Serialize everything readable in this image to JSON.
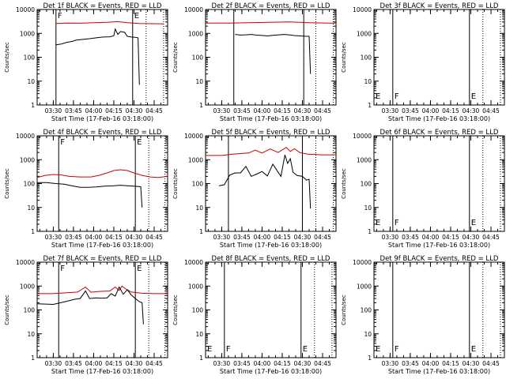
{
  "figure": {
    "ylabel": "Counts/sec",
    "xlabel": "Start Time (17-Feb-16 03:18:00)"
  },
  "x_ticks": [
    "03:30",
    "03:45",
    "04:00",
    "04:15",
    "04:30",
    "04:45"
  ],
  "chart_data": [
    {
      "id": "det1f",
      "title": "Det 1f BLACK = Events, RED = LLD",
      "type": "line",
      "yscale": "log",
      "yticks": [
        "1",
        "10",
        "100",
        "1000",
        "10000"
      ],
      "ylim": [
        1,
        10000
      ],
      "xlim": [
        "03:18",
        "04:55"
      ],
      "x_ticks": [
        "03:30",
        "03:45",
        "04:00",
        "04:15",
        "04:30",
        "04:45"
      ],
      "markers": {
        "solid": [
          "03:32",
          "04:29"
        ],
        "dotted": [
          "04:39",
          "04:52"
        ],
        "labels": [
          "F",
          "E"
        ]
      },
      "series": [
        {
          "color": "#cc0000",
          "points": [
            [
              "03:32",
              2600
            ],
            [
              "03:40",
              2700
            ],
            [
              "03:50",
              2650
            ],
            [
              "04:00",
              2800
            ],
            [
              "04:10",
              2900
            ],
            [
              "04:18",
              3100
            ],
            [
              "04:25",
              2800
            ],
            [
              "04:34",
              2600
            ],
            [
              "04:45",
              2550
            ],
            [
              "04:52",
              2500
            ]
          ]
        },
        {
          "color": "#000000",
          "points": [
            [
              "03:32",
              330
            ],
            [
              "03:36",
              360
            ],
            [
              "03:40",
              420
            ],
            [
              "03:44",
              460
            ],
            [
              "03:47",
              520
            ],
            [
              "03:52",
              560
            ],
            [
              "03:57",
              600
            ],
            [
              "04:02",
              650
            ],
            [
              "04:07",
              700
            ],
            [
              "04:12",
              720
            ],
            [
              "04:15",
              800
            ],
            [
              "04:16",
              1500
            ],
            [
              "04:18",
              900
            ],
            [
              "04:20",
              1200
            ],
            [
              "04:23",
              1100
            ],
            [
              "04:25",
              750
            ],
            [
              "04:28",
              700
            ],
            [
              "04:31",
              680
            ],
            [
              "04:33",
              650
            ],
            [
              "04:34",
              7
            ]
          ]
        }
      ]
    },
    {
      "id": "det2f",
      "title": "Det 2f BLACK = Events, RED = LLD",
      "type": "line",
      "yscale": "log",
      "yticks": [
        "1",
        "10",
        "100",
        "1000",
        "10000"
      ],
      "ylim": [
        1,
        10000
      ],
      "xlim": [
        "03:18",
        "04:55"
      ],
      "x_ticks": [
        "03:30",
        "03:45",
        "04:00",
        "04:15",
        "04:30",
        "04:45"
      ],
      "markers": {
        "solid": [
          "03:39",
          "04:31"
        ],
        "dotted": [
          "04:40",
          "04:53"
        ],
        "labels": []
      },
      "series": [
        {
          "color": "#cc0000",
          "points": [
            [
              "03:18",
              2700
            ],
            [
              "03:35",
              2700
            ],
            [
              "03:50",
              2800
            ],
            [
              "04:05",
              2900
            ],
            [
              "04:20",
              3000
            ],
            [
              "04:35",
              2800
            ],
            [
              "04:50",
              2700
            ],
            [
              "04:55",
              2700
            ]
          ]
        },
        {
          "color": "#000000",
          "points": [
            [
              "03:40",
              900
            ],
            [
              "03:44",
              850
            ],
            [
              "03:48",
              870
            ],
            [
              "03:52",
              900
            ],
            [
              "03:56",
              840
            ],
            [
              "04:00",
              820
            ],
            [
              "04:04",
              780
            ],
            [
              "04:08",
              830
            ],
            [
              "04:12",
              860
            ],
            [
              "04:16",
              900
            ],
            [
              "04:20",
              870
            ],
            [
              "04:24",
              810
            ],
            [
              "04:28",
              780
            ],
            [
              "04:32",
              760
            ],
            [
              "04:35",
              750
            ],
            [
              "04:36",
              20
            ]
          ]
        }
      ]
    },
    {
      "id": "det3f",
      "title": "Det 3f BLACK = Events, RED = LLD",
      "type": "line",
      "yscale": "log",
      "yticks": [
        "1",
        "10",
        "100",
        "1000",
        "10000"
      ],
      "ylim": [
        1,
        10000
      ],
      "xlim": [
        "03:18",
        "04:55"
      ],
      "x_ticks": [
        "03:30",
        "03:45",
        "04:00",
        "04:15",
        "04:30",
        "04:45"
      ],
      "markers": {
        "solid": [
          "03:32",
          "04:29"
        ],
        "dotted": [
          "04:39",
          "04:52"
        ],
        "labels": [
          "F",
          "E"
        ]
      },
      "series": []
    },
    {
      "id": "det4f",
      "title": "Det 4f BLACK = Events, RED = LLD",
      "type": "line",
      "yscale": "log",
      "yticks": [
        "1",
        "10",
        "100",
        "1000",
        "10000"
      ],
      "ylim": [
        1,
        10000
      ],
      "xlim": [
        "03:18",
        "04:55"
      ],
      "x_ticks": [
        "03:30",
        "03:45",
        "04:00",
        "04:15",
        "04:30",
        "04:45"
      ],
      "markers": {
        "solid": [
          "03:34",
          "04:31"
        ],
        "dotted": [
          "04:41",
          "04:53"
        ],
        "labels": [
          "F",
          "E"
        ]
      },
      "series": [
        {
          "color": "#cc0000",
          "points": [
            [
              "03:18",
              180
            ],
            [
              "03:24",
              220
            ],
            [
              "03:30",
              240
            ],
            [
              "03:36",
              230
            ],
            [
              "03:42",
              200
            ],
            [
              "03:50",
              190
            ],
            [
              "03:58",
              190
            ],
            [
              "04:04",
              220
            ],
            [
              "04:10",
              280
            ],
            [
              "04:15",
              350
            ],
            [
              "04:20",
              380
            ],
            [
              "04:25",
              350
            ],
            [
              "04:30",
              280
            ],
            [
              "04:36",
              220
            ],
            [
              "04:42",
              190
            ],
            [
              "04:48",
              180
            ],
            [
              "04:55",
              200
            ]
          ]
        },
        {
          "color": "#000000",
          "points": [
            [
              "03:18",
              110
            ],
            [
              "03:25",
              110
            ],
            [
              "03:32",
              100
            ],
            [
              "03:38",
              95
            ],
            [
              "03:44",
              80
            ],
            [
              "03:50",
              70
            ],
            [
              "03:56",
              70
            ],
            [
              "04:02",
              72
            ],
            [
              "04:08",
              78
            ],
            [
              "04:14",
              80
            ],
            [
              "04:20",
              85
            ],
            [
              "04:26",
              80
            ],
            [
              "04:30",
              78
            ],
            [
              "04:35",
              74
            ],
            [
              "04:36",
              10
            ]
          ]
        }
      ]
    },
    {
      "id": "det5f",
      "title": "Det 5f BLACK = Events, RED = LLD",
      "type": "line",
      "yscale": "log",
      "yticks": [
        "1",
        "10",
        "100",
        "1000",
        "10000"
      ],
      "ylim": [
        1,
        10000
      ],
      "xlim": [
        "03:18",
        "04:55"
      ],
      "x_ticks": [
        "03:30",
        "03:45",
        "04:00",
        "04:15",
        "04:30",
        "04:45"
      ],
      "markers": {
        "solid": [
          "03:35",
          "04:30"
        ],
        "dotted": [
          "04:40",
          "04:53"
        ],
        "labels": []
      },
      "series": [
        {
          "color": "#cc0000",
          "points": [
            [
              "03:18",
              1500
            ],
            [
              "03:30",
              1500
            ],
            [
              "03:38",
              1700
            ],
            [
              "03:44",
              1800
            ],
            [
              "03:50",
              1900
            ],
            [
              "03:55",
              2500
            ],
            [
              "04:00",
              1900
            ],
            [
              "04:06",
              2800
            ],
            [
              "04:12",
              2000
            ],
            [
              "04:18",
              3300
            ],
            [
              "04:21",
              2200
            ],
            [
              "04:24",
              2900
            ],
            [
              "04:28",
              2000
            ],
            [
              "04:34",
              1700
            ],
            [
              "04:45",
              1600
            ],
            [
              "04:55",
              1600
            ]
          ]
        },
        {
          "color": "#000000",
          "points": [
            [
              "03:28",
              80
            ],
            [
              "03:32",
              90
            ],
            [
              "03:36",
              230
            ],
            [
              "03:40",
              280
            ],
            [
              "03:44",
              280
            ],
            [
              "03:48",
              520
            ],
            [
              "03:52",
              200
            ],
            [
              "03:56",
              250
            ],
            [
              "04:00",
              320
            ],
            [
              "04:04",
              210
            ],
            [
              "04:08",
              650
            ],
            [
              "04:11",
              360
            ],
            [
              "04:14",
              200
            ],
            [
              "04:17",
              1600
            ],
            [
              "04:19",
              700
            ],
            [
              "04:21",
              1100
            ],
            [
              "04:23",
              300
            ],
            [
              "04:26",
              220
            ],
            [
              "04:30",
              200
            ],
            [
              "04:33",
              140
            ],
            [
              "04:35",
              150
            ],
            [
              "04:36",
              9
            ]
          ]
        }
      ]
    },
    {
      "id": "det6f",
      "title": "Det 6f BLACK = Events, RED = LLD",
      "type": "line",
      "yscale": "log",
      "yticks": [
        "1",
        "10",
        "100",
        "1000",
        "10000"
      ],
      "ylim": [
        1,
        10000
      ],
      "xlim": [
        "03:18",
        "04:55"
      ],
      "x_ticks": [
        "03:30",
        "03:45",
        "04:00",
        "04:15",
        "04:30",
        "04:45"
      ],
      "markers": {
        "solid": [
          "03:32",
          "04:29"
        ],
        "dotted": [
          "04:39",
          "04:52"
        ],
        "labels": [
          "F",
          "E"
        ]
      },
      "series": []
    },
    {
      "id": "det7f",
      "title": "Det 7f BLACK = Events, RED = LLD",
      "type": "line",
      "yscale": "log",
      "yticks": [
        "1",
        "10",
        "100",
        "1000",
        "10000"
      ],
      "ylim": [
        1,
        10000
      ],
      "xlim": [
        "03:18",
        "04:55"
      ],
      "x_ticks": [
        "03:30",
        "03:45",
        "04:00",
        "04:15",
        "04:30",
        "04:45"
      ],
      "markers": {
        "solid": [
          "03:34",
          "04:31"
        ],
        "dotted": [
          "04:41",
          "04:53"
        ],
        "labels": [
          "F",
          "E"
        ]
      },
      "series": [
        {
          "color": "#cc0000",
          "points": [
            [
              "03:18",
              480
            ],
            [
              "03:30",
              480
            ],
            [
              "03:40",
              520
            ],
            [
              "03:48",
              560
            ],
            [
              "03:54",
              900
            ],
            [
              "03:58",
              550
            ],
            [
              "04:05",
              600
            ],
            [
              "04:12",
              620
            ],
            [
              "04:16",
              900
            ],
            [
              "04:19",
              650
            ],
            [
              "04:21",
              1000
            ],
            [
              "04:24",
              750
            ],
            [
              "04:28",
              560
            ],
            [
              "04:36",
              500
            ],
            [
              "04:45",
              480
            ],
            [
              "04:55",
              480
            ]
          ]
        },
        {
          "color": "#000000",
          "points": [
            [
              "03:18",
              180
            ],
            [
              "03:30",
              170
            ],
            [
              "03:40",
              230
            ],
            [
              "03:46",
              280
            ],
            [
              "03:50",
              300
            ],
            [
              "03:54",
              620
            ],
            [
              "03:57",
              300
            ],
            [
              "04:02",
              320
            ],
            [
              "04:06",
              310
            ],
            [
              "04:10",
              320
            ],
            [
              "04:13",
              480
            ],
            [
              "04:16",
              380
            ],
            [
              "04:19",
              900
            ],
            [
              "04:22",
              450
            ],
            [
              "04:25",
              700
            ],
            [
              "04:28",
              420
            ],
            [
              "04:31",
              300
            ],
            [
              "04:34",
              220
            ],
            [
              "04:36",
              200
            ],
            [
              "04:37",
              25
            ]
          ]
        }
      ]
    },
    {
      "id": "det8f",
      "title": "Det 8f BLACK = Events, RED = LLD",
      "type": "line",
      "yscale": "log",
      "yticks": [
        "1",
        "10",
        "100",
        "1000",
        "10000"
      ],
      "ylim": [
        1,
        10000
      ],
      "xlim": [
        "03:18",
        "04:55"
      ],
      "x_ticks": [
        "03:30",
        "03:45",
        "04:00",
        "04:15",
        "04:30",
        "04:45"
      ],
      "markers": {
        "solid": [
          "03:32",
          "04:29"
        ],
        "dotted": [
          "04:39",
          "04:52"
        ],
        "labels": [
          "F",
          "E"
        ]
      },
      "series": []
    },
    {
      "id": "det9f",
      "title": "Det 9f BLACK = Events, RED = LLD",
      "type": "line",
      "yscale": "log",
      "yticks": [
        "1",
        "10",
        "100",
        "1000",
        "10000"
      ],
      "ylim": [
        1,
        10000
      ],
      "xlim": [
        "03:18",
        "04:55"
      ],
      "x_ticks": [
        "03:30",
        "03:45",
        "04:00",
        "04:15",
        "04:30",
        "04:45"
      ],
      "markers": {
        "solid": [
          "03:32",
          "04:29"
        ],
        "dotted": [
          "04:39",
          "04:52"
        ],
        "labels": [
          "F",
          "E"
        ]
      },
      "series": []
    }
  ]
}
